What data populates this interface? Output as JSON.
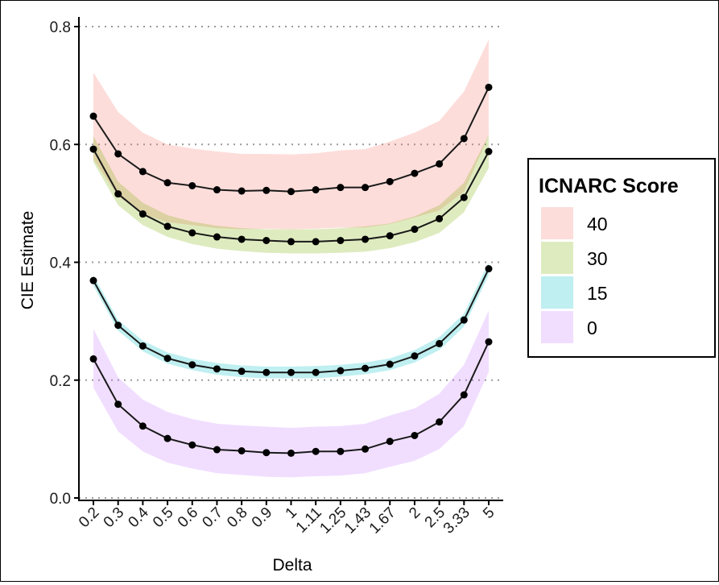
{
  "chart_data": {
    "type": "line",
    "title": "",
    "xlabel": "Delta",
    "ylabel": "CIE Estimate",
    "categories": [
      "0.2",
      "0.3",
      "0.4",
      "0.5",
      "0.6",
      "0.7",
      "0.8",
      "0.9",
      "1",
      "1.11",
      "1.25",
      "1.43",
      "1.67",
      "2",
      "2.5",
      "3.33",
      "5"
    ],
    "ylim": [
      0,
      0.8
    ],
    "yticks": [
      0.0,
      0.2,
      0.4,
      0.6,
      0.8
    ],
    "ytick_labels": [
      "0.0",
      "0.2",
      "0.4",
      "0.6",
      "0.8"
    ],
    "grid": "horizontal dotted",
    "legend": {
      "title": "ICNARC Score",
      "position": "right"
    },
    "series": [
      {
        "name": "40",
        "color": "#F8766D",
        "values": [
          0.648,
          0.584,
          0.554,
          0.535,
          0.53,
          0.523,
          0.521,
          0.522,
          0.52,
          0.523,
          0.527,
          0.527,
          0.537,
          0.551,
          0.567,
          0.61,
          0.697
        ],
        "lower": [
          0.575,
          0.512,
          0.482,
          0.468,
          0.463,
          0.458,
          0.456,
          0.457,
          0.456,
          0.457,
          0.459,
          0.459,
          0.465,
          0.476,
          0.488,
          0.52,
          0.615
        ],
        "upper": [
          0.722,
          0.655,
          0.62,
          0.6,
          0.593,
          0.588,
          0.584,
          0.584,
          0.583,
          0.585,
          0.59,
          0.592,
          0.605,
          0.62,
          0.64,
          0.69,
          0.778
        ]
      },
      {
        "name": "30",
        "color": "#7CAE00",
        "values": [
          0.592,
          0.516,
          0.482,
          0.461,
          0.45,
          0.443,
          0.439,
          0.437,
          0.435,
          0.435,
          0.437,
          0.439,
          0.445,
          0.456,
          0.474,
          0.51,
          0.588
        ],
        "lower": [
          0.57,
          0.497,
          0.463,
          0.443,
          0.431,
          0.423,
          0.419,
          0.416,
          0.415,
          0.415,
          0.416,
          0.418,
          0.424,
          0.434,
          0.45,
          0.485,
          0.56
        ],
        "upper": [
          0.614,
          0.537,
          0.501,
          0.48,
          0.469,
          0.462,
          0.458,
          0.456,
          0.456,
          0.456,
          0.458,
          0.461,
          0.466,
          0.478,
          0.497,
          0.535,
          0.616
        ]
      },
      {
        "name": "15",
        "color": "#00BFC4",
        "values": [
          0.369,
          0.293,
          0.258,
          0.237,
          0.226,
          0.219,
          0.215,
          0.213,
          0.213,
          0.213,
          0.216,
          0.22,
          0.227,
          0.241,
          0.262,
          0.302,
          0.389
        ],
        "lower": [
          0.36,
          0.284,
          0.249,
          0.228,
          0.217,
          0.209,
          0.205,
          0.203,
          0.203,
          0.203,
          0.206,
          0.21,
          0.217,
          0.23,
          0.251,
          0.291,
          0.378
        ],
        "upper": [
          0.378,
          0.302,
          0.267,
          0.247,
          0.236,
          0.229,
          0.225,
          0.223,
          0.223,
          0.224,
          0.226,
          0.23,
          0.237,
          0.251,
          0.273,
          0.313,
          0.4
        ]
      },
      {
        "name": "0",
        "color": "#C77CFF",
        "values": [
          0.236,
          0.159,
          0.122,
          0.101,
          0.09,
          0.082,
          0.08,
          0.077,
          0.076,
          0.079,
          0.079,
          0.083,
          0.096,
          0.106,
          0.129,
          0.175,
          0.265
        ],
        "lower": [
          0.187,
          0.113,
          0.079,
          0.06,
          0.05,
          0.042,
          0.039,
          0.036,
          0.035,
          0.037,
          0.038,
          0.042,
          0.053,
          0.063,
          0.083,
          0.122,
          0.214
        ],
        "upper": [
          0.287,
          0.205,
          0.167,
          0.146,
          0.134,
          0.126,
          0.123,
          0.121,
          0.119,
          0.121,
          0.122,
          0.126,
          0.14,
          0.152,
          0.177,
          0.226,
          0.318
        ]
      }
    ]
  }
}
